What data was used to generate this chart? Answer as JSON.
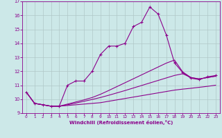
{
  "xlabel": "Windchill (Refroidissement éolien,°C)",
  "background_color": "#cce8e8",
  "line_color": "#8b008b",
  "xlim": [
    -0.5,
    23.5
  ],
  "ylim": [
    9,
    17
  ],
  "xticks": [
    0,
    1,
    2,
    3,
    4,
    5,
    6,
    7,
    8,
    9,
    10,
    11,
    12,
    13,
    14,
    15,
    16,
    17,
    18,
    19,
    20,
    21,
    22,
    23
  ],
  "yticks": [
    9,
    10,
    11,
    12,
    13,
    14,
    15,
    16,
    17
  ],
  "grid_color": "#b0c8c8",
  "series": [
    [
      10.5,
      9.7,
      9.6,
      9.5,
      9.5,
      11.0,
      11.3,
      11.3,
      12.0,
      13.2,
      13.8,
      13.8,
      14.0,
      15.2,
      15.5,
      16.6,
      16.1,
      14.6,
      12.6,
      11.9,
      11.5,
      11.4,
      11.6,
      11.7
    ],
    [
      10.5,
      9.7,
      9.6,
      9.5,
      9.5,
      9.55,
      9.6,
      9.65,
      9.7,
      9.75,
      9.85,
      9.95,
      10.05,
      10.15,
      10.25,
      10.35,
      10.45,
      10.55,
      10.65,
      10.72,
      10.78,
      10.85,
      10.92,
      11.0
    ],
    [
      10.5,
      9.7,
      9.6,
      9.5,
      9.5,
      9.6,
      9.72,
      9.85,
      9.98,
      10.12,
      10.28,
      10.45,
      10.62,
      10.8,
      10.98,
      11.16,
      11.34,
      11.52,
      11.7,
      11.82,
      11.55,
      11.45,
      11.55,
      11.65
    ],
    [
      10.5,
      9.7,
      9.6,
      9.5,
      9.5,
      9.65,
      9.8,
      9.95,
      10.12,
      10.35,
      10.62,
      10.9,
      11.18,
      11.46,
      11.74,
      12.02,
      12.3,
      12.58,
      12.8,
      11.95,
      11.55,
      11.45,
      11.55,
      11.65
    ]
  ],
  "markers": [
    true,
    false,
    false,
    false
  ]
}
